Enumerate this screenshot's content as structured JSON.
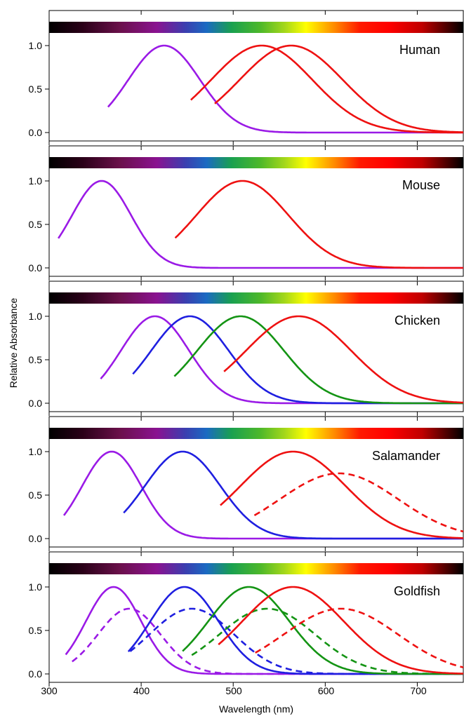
{
  "chart_data": {
    "type": "line",
    "xlabel": "Wavelength (nm)",
    "ylabel": "Relative Absorbance",
    "xlim": [
      300,
      750
    ],
    "ylim": [
      -0.05,
      1.17
    ],
    "x_ticks": [
      300,
      400,
      500,
      600,
      700
    ],
    "y_ticks": [
      0.0,
      0.5,
      1.0
    ],
    "y_tick_labels": [
      "0.0",
      "0.5",
      "1.0"
    ],
    "spectrum_bar": true,
    "grid": false,
    "colors": {
      "violet": "#9a1ae6",
      "blue": "#1f1fe0",
      "green": "#149414",
      "red": "#ee1111"
    },
    "panels": [
      {
        "label": "Human",
        "series": [
          {
            "color": "violet",
            "style": "solid",
            "peak": 425,
            "peak_value": 1.0,
            "width": 39,
            "x_start": 364
          },
          {
            "color": "red",
            "style": "solid",
            "peak": 531,
            "peak_value": 1.0,
            "width": 55,
            "x_start": 454
          },
          {
            "color": "red",
            "style": "solid",
            "peak": 563,
            "peak_value": 1.0,
            "width": 56,
            "x_start": 480
          }
        ]
      },
      {
        "label": "Mouse",
        "series": [
          {
            "color": "violet",
            "style": "solid",
            "peak": 357,
            "peak_value": 1.0,
            "width": 32,
            "x_start": 310
          },
          {
            "color": "red",
            "style": "solid",
            "peak": 510,
            "peak_value": 1.0,
            "width": 50,
            "x_start": 437
          }
        ]
      },
      {
        "label": "Chicken",
        "series": [
          {
            "color": "violet",
            "style": "solid",
            "peak": 415,
            "peak_value": 1.0,
            "width": 37,
            "x_start": 356
          },
          {
            "color": "blue",
            "style": "solid",
            "peak": 453,
            "peak_value": 1.0,
            "width": 42,
            "x_start": 391
          },
          {
            "color": "green",
            "style": "solid",
            "peak": 508,
            "peak_value": 1.0,
            "width": 47,
            "x_start": 436
          },
          {
            "color": "red",
            "style": "solid",
            "peak": 571,
            "peak_value": 1.0,
            "width": 57,
            "x_start": 490
          }
        ]
      },
      {
        "label": "Salamander",
        "series": [
          {
            "color": "violet",
            "style": "solid",
            "peak": 368,
            "peak_value": 1.0,
            "width": 32,
            "x_start": 316
          },
          {
            "color": "blue",
            "style": "solid",
            "peak": 445,
            "peak_value": 1.0,
            "width": 41,
            "x_start": 381
          },
          {
            "color": "red",
            "style": "solid",
            "peak": 565,
            "peak_value": 1.0,
            "width": 57,
            "x_start": 486
          },
          {
            "color": "red",
            "style": "dashed",
            "peak": 615,
            "peak_value": 0.75,
            "width": 64,
            "x_start": 523
          }
        ]
      },
      {
        "label": "Goldfish",
        "series": [
          {
            "color": "violet",
            "style": "solid",
            "peak": 370,
            "peak_value": 1.0,
            "width": 30,
            "x_start": 318
          },
          {
            "color": "violet",
            "style": "dashed",
            "peak": 387,
            "peak_value": 0.75,
            "width": 34,
            "x_start": 325
          },
          {
            "color": "blue",
            "style": "solid",
            "peak": 447,
            "peak_value": 1.0,
            "width": 37,
            "x_start": 386
          },
          {
            "color": "blue",
            "style": "dashed",
            "peak": 455,
            "peak_value": 0.75,
            "width": 46,
            "x_start": 388
          },
          {
            "color": "green",
            "style": "solid",
            "peak": 517,
            "peak_value": 1.0,
            "width": 44,
            "x_start": 445
          },
          {
            "color": "green",
            "style": "dashed",
            "peak": 537,
            "peak_value": 0.75,
            "width": 52,
            "x_start": 455
          },
          {
            "color": "red",
            "style": "solid",
            "peak": 565,
            "peak_value": 1.0,
            "width": 55,
            "x_start": 484
          },
          {
            "color": "red",
            "style": "dashed",
            "peak": 617,
            "peak_value": 0.75,
            "width": 62,
            "x_start": 524
          }
        ]
      }
    ]
  }
}
